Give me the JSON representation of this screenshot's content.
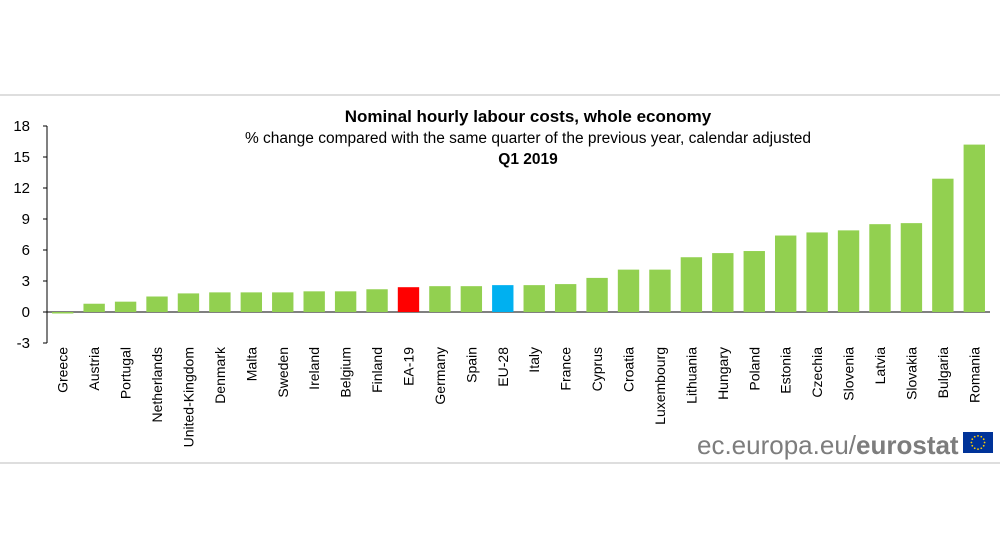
{
  "colors": {
    "default_bar": "#92d050",
    "ea19_bar": "#ff0000",
    "eu28_bar": "#00b0f0",
    "brand_gray": "#7d7d7d",
    "eu_flag_blue": "#003399",
    "eu_flag_star": "#ffcc00"
  },
  "source": {
    "domain_text": "ec.europa.eu/",
    "brand_text": "eurostat",
    "flag_icon": "eu-flag-icon"
  },
  "chart_data": {
    "type": "bar",
    "title": "Nominal hourly labour costs, whole economy",
    "subtitle": "% change compared with the same quarter of the previous year, calendar adjusted",
    "period": "Q1 2019",
    "xlabel": "",
    "ylabel": "",
    "ylim": [
      -3,
      18
    ],
    "yticks": [
      -3,
      0,
      3,
      6,
      9,
      12,
      15,
      18
    ],
    "grid": false,
    "categories": [
      "Greece",
      "Austria",
      "Portugal",
      "Netherlands",
      "United-Kingdom",
      "Denmark",
      "Malta",
      "Sweden",
      "Ireland",
      "Belgium",
      "Finland",
      "EA-19",
      "Germany",
      "Spain",
      "EU-28",
      "Italy",
      "France",
      "Cyprus",
      "Croatia",
      "Luxembourg",
      "Lithuania",
      "Hungary",
      "Poland",
      "Estonia",
      "Czechia",
      "Slovenia",
      "Latvia",
      "Slovakia",
      "Bulgaria",
      "Romania"
    ],
    "values": [
      -0.1,
      0.8,
      1.0,
      1.5,
      1.8,
      1.9,
      1.9,
      1.9,
      2.0,
      2.0,
      2.2,
      2.4,
      2.5,
      2.5,
      2.6,
      2.6,
      2.7,
      3.3,
      4.1,
      4.1,
      5.3,
      5.7,
      5.9,
      7.4,
      7.7,
      7.9,
      8.5,
      8.6,
      12.9,
      16.2
    ],
    "highlight": {
      "EA-19": "#ff0000",
      "EU-28": "#00b0f0"
    }
  }
}
